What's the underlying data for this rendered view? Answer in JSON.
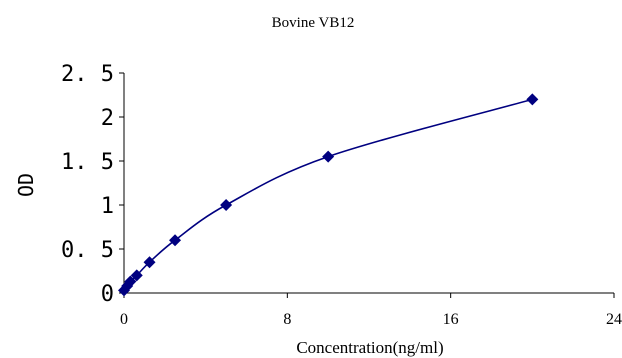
{
  "chart_data": {
    "type": "scatter",
    "title": "Bovine VB12",
    "xlabel": "Concentration(ng/ml)",
    "ylabel": "OD",
    "xlim": [
      0,
      24
    ],
    "ylim": [
      0,
      2.5
    ],
    "x_ticks": [
      "0",
      "8",
      "16",
      "24"
    ],
    "y_ticks": [
      "0",
      "0. 5",
      "1",
      "1. 5",
      "2",
      "2. 5"
    ],
    "x_tick_values": [
      0,
      8,
      16,
      24
    ],
    "y_tick_values": [
      0,
      0.5,
      1,
      1.5,
      2,
      2.5
    ],
    "grid": false,
    "marker": "diamond",
    "color": "#000080",
    "x": [
      0,
      0.156,
      0.312,
      0.625,
      1.25,
      2.5,
      5,
      10,
      20
    ],
    "y": [
      0.03,
      0.08,
      0.13,
      0.2,
      0.35,
      0.6,
      1.0,
      1.55,
      2.2
    ],
    "fit_line": true
  }
}
